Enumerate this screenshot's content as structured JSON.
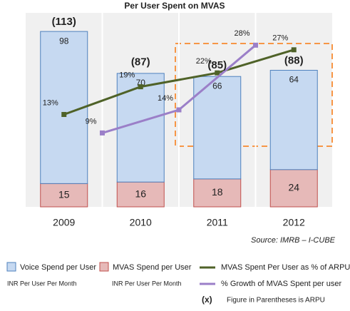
{
  "chart_data": {
    "type": "bar",
    "stacked": true,
    "title": "Per User Spent on MVAS",
    "categories": [
      "2009",
      "2010",
      "2011",
      "2012"
    ],
    "series": [
      {
        "name": "MVAS Spend per User",
        "color": "#e6b9b8",
        "values": [
          15,
          16,
          18,
          24
        ]
      },
      {
        "name": "Voice Spend per User",
        "color": "#c6d9f1",
        "values": [
          98,
          70,
          66,
          64
        ]
      },
      {
        "name": "MVAS Spent Per User as % of ARPU",
        "type": "line",
        "axis": "y2",
        "color": "#4f6228",
        "values": [
          13,
          19,
          22,
          27
        ],
        "value_labels": [
          "13%",
          "19%",
          "22%",
          "27%"
        ]
      },
      {
        "name": "% Growth of MVAS Spent per user",
        "type": "line",
        "axis": "y2",
        "color": "#9b7fc8",
        "values": [
          null,
          9,
          14,
          28
        ],
        "value_labels": [
          null,
          "9%",
          "14%",
          "28%"
        ]
      }
    ],
    "totals": {
      "values": [
        113,
        87,
        85,
        88
      ],
      "value_labels": [
        "(113)",
        "(87)",
        "(85)",
        "(88)"
      ]
    },
    "ylim": [
      0,
      125
    ],
    "y2lim": [
      -7,
      35
    ],
    "legend_notes": [
      "INR Per User Per Month",
      "INR Per User Per Month"
    ],
    "footnote": {
      "symbol": "(x)",
      "text": "Figure in Parentheses is ARPU"
    },
    "source": "Source: IMRB – I-CUBE"
  }
}
